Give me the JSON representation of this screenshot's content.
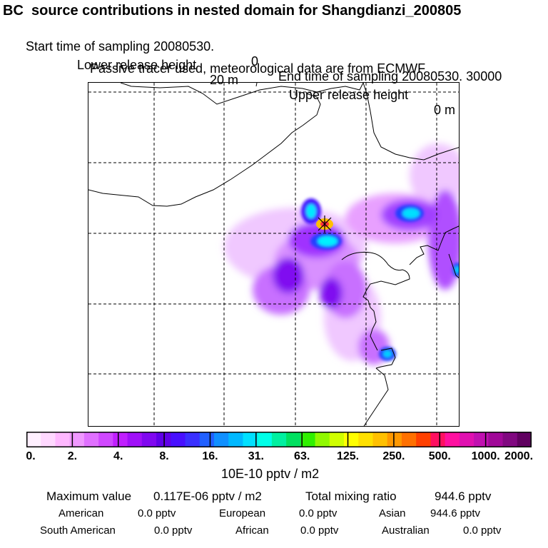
{
  "header": {
    "title": "BC  source contributions in nested domain for Shangdianzi_200805",
    "start_label": "Start time of sampling 20080530.",
    "start_value": "0",
    "end_label": "End time of sampling 20080530. 30000",
    "lower_label": "Lower release height",
    "lower_value": "20 m",
    "upper_label": "Upper release height",
    "upper_value": "0 m",
    "tracer_note": "Passive tracer used, meteorological data are from ECMWF"
  },
  "colorbar": {
    "colors": [
      "#fff0ff",
      "#ffd8ff",
      "#ffb8ff",
      "#f098ff",
      "#e070ff",
      "#d048ff",
      "#c020ff",
      "#a010f8",
      "#8008f0",
      "#6000e8",
      "#4810ff",
      "#3a30ff",
      "#2060ff",
      "#1090ff",
      "#00b8ff",
      "#00e0ff",
      "#00ffe8",
      "#00f0a0",
      "#00e060",
      "#30f000",
      "#90f800",
      "#d0ff00",
      "#ffff00",
      "#ffe000",
      "#ffc000",
      "#ff9800",
      "#ff7000",
      "#ff4000",
      "#ff1060",
      "#ff10a0",
      "#e010b0",
      "#c010b0",
      "#a00898",
      "#800880",
      "#600060"
    ],
    "ticks": [
      "0.",
      "2.",
      "4.",
      "8.",
      "16.",
      "31.",
      "63.",
      "125.",
      "250.",
      "500.",
      "1000.",
      "2000."
    ],
    "units": "10E-10 pptv / m2"
  },
  "stats": {
    "max_label": "Maximum value",
    "max_value": "0.117E-06 pptv / m2",
    "total_label": "Total mixing ratio",
    "total_value": "944.6 pptv",
    "regions": [
      {
        "name": "American",
        "value": "0.0 pptv"
      },
      {
        "name": "European",
        "value": "0.0 pptv"
      },
      {
        "name": "Asian",
        "value": "944.6 pptv"
      },
      {
        "name": "South American",
        "value": "0.0 pptv"
      },
      {
        "name": "African",
        "value": "0.0 pptv"
      },
      {
        "name": "Australian",
        "value": "0.0 pptv"
      }
    ]
  }
}
